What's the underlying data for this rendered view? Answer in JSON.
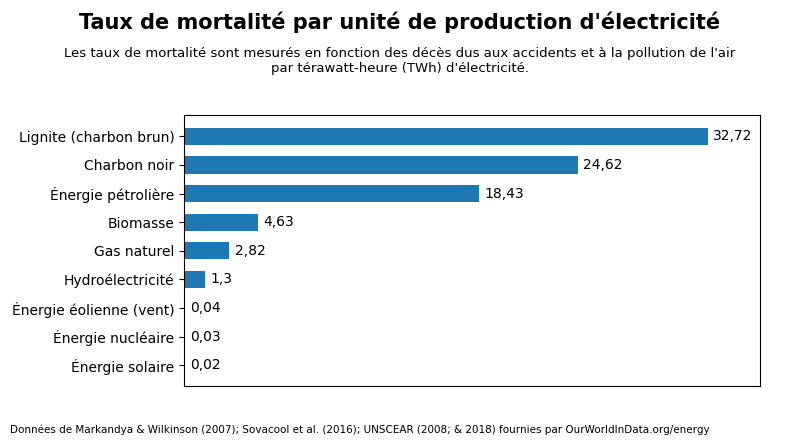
{
  "chart_data": {
    "type": "bar",
    "orientation": "horizontal",
    "title": "Taux de mortalité par unité de production d'électricité",
    "subtitle": "Les taux de mortalité sont mesurés en fonction des décès dus aux accidents et à la pollution de l'air\npar térawatt-heure (TWh) d'électricité.",
    "footnote": "Données de Markandya & Wilkinson (2007); Sovacool et al. (2016); UNSCEAR (2008; & 2018) fournies par OurWorldInData.org/energy",
    "categories": [
      "Lignite (charbon brun)",
      "Charbon noir",
      "Énergie pétrolière",
      "Biomasse",
      "Gas naturel",
      "Hydroélectricité",
      "Énergie éolienne (vent)",
      "Énergie nucléaire",
      "Énergie solaire"
    ],
    "values": [
      32.72,
      24.62,
      18.43,
      4.63,
      2.82,
      1.3,
      0.04,
      0.03,
      0.02
    ],
    "value_labels": [
      "32,72",
      "24,62",
      "18,43",
      "4,63",
      "2,82",
      "1,3",
      "0,04",
      "0,03",
      "0,02"
    ],
    "data_labels": true,
    "xlim": [
      0,
      36
    ],
    "xticks": [],
    "tick_labels": "y",
    "grid": false
  }
}
